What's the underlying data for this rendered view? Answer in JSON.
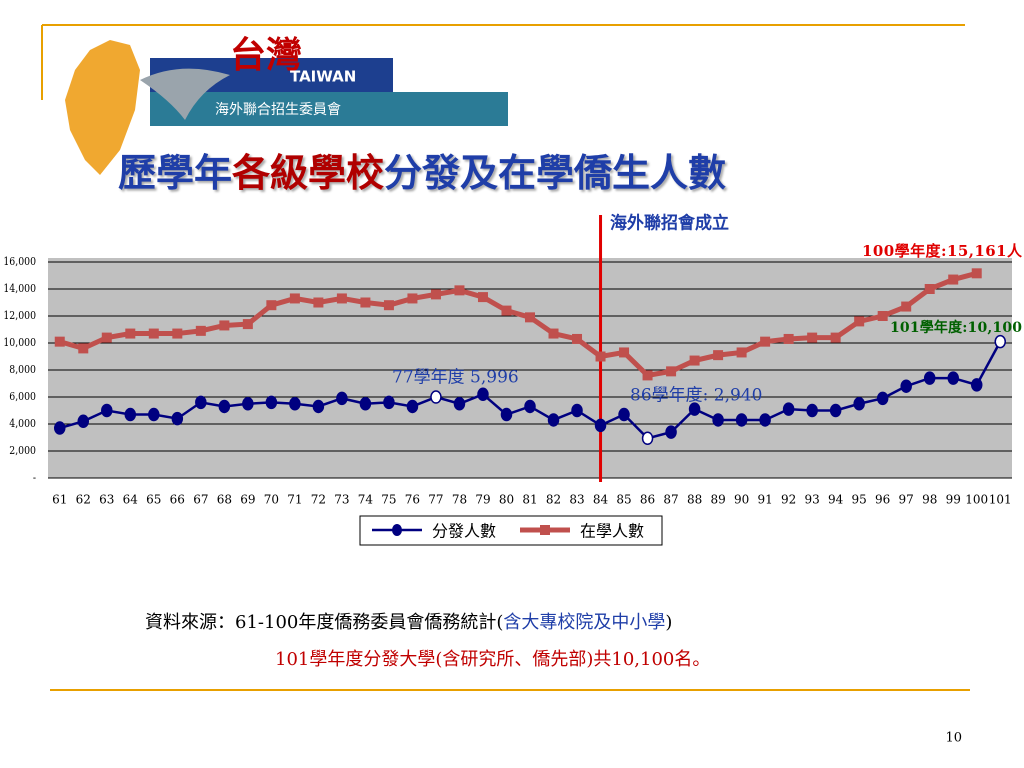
{
  "header": {
    "logo_cn": "台灣",
    "logo_en": "TAIWAN",
    "org": "海外聯合招生委員會"
  },
  "title_parts": [
    "歷學年",
    "各級學校",
    "分發及在學僑生人數"
  ],
  "chart_data": {
    "type": "line",
    "categories": [
      "61",
      "62",
      "63",
      "64",
      "65",
      "66",
      "67",
      "68",
      "69",
      "70",
      "71",
      "72",
      "73",
      "74",
      "75",
      "76",
      "77",
      "78",
      "79",
      "80",
      "81",
      "82",
      "83",
      "84",
      "85",
      "86",
      "87",
      "88",
      "89",
      "90",
      "91",
      "92",
      "93",
      "94",
      "95",
      "96",
      "97",
      "98",
      "99",
      "100",
      "101"
    ],
    "series": [
      {
        "name": "分發人數",
        "color": "#000080",
        "values": [
          3700,
          4200,
          5000,
          4700,
          4700,
          4400,
          5600,
          5300,
          5500,
          5600,
          5500,
          5300,
          5900,
          5500,
          5600,
          5300,
          5996,
          5500,
          6200,
          4700,
          5300,
          4300,
          5000,
          3900,
          4700,
          2940,
          3400,
          5100,
          4300,
          4300,
          4300,
          5100,
          5000,
          5000,
          5500,
          5900,
          6800,
          7400,
          7400,
          6900,
          10100
        ]
      },
      {
        "name": "在學人數",
        "color": "#c0504d",
        "values": [
          10100,
          9600,
          10400,
          10700,
          10700,
          10700,
          10900,
          11300,
          11400,
          12800,
          13300,
          13000,
          13300,
          13000,
          12800,
          13300,
          13600,
          13900,
          13400,
          12400,
          11900,
          10700,
          10300,
          9000,
          9300,
          7600,
          7900,
          8700,
          9100,
          9300,
          10100,
          10300,
          10400,
          10400,
          11600,
          12000,
          12700,
          14000,
          14700,
          15161,
          null
        ]
      }
    ],
    "hollow_markers": [
      16,
      25,
      40
    ],
    "ylim": [
      0,
      16000
    ],
    "yticks": [
      {
        "value": 0,
        "label": "-"
      },
      {
        "value": 2000,
        "label": "2,000"
      },
      {
        "value": 4000,
        "label": "4,000"
      },
      {
        "value": 6000,
        "label": "6,000"
      },
      {
        "value": 8000,
        "label": "8,000"
      },
      {
        "value": 10000,
        "label": "10,000"
      },
      {
        "value": 12000,
        "label": "12,000"
      },
      {
        "value": 14000,
        "label": "14,000"
      },
      {
        "value": 16000,
        "label": "16,000"
      }
    ],
    "grid": true,
    "annotations": [
      "海外聯招會成立",
      "100學年度:15,161人",
      "101學年度:10,100",
      "77學年度 5,996",
      "86學年度: 2,940"
    ]
  },
  "source": {
    "line1_parts": [
      "資料來源：61-100年度僑務委員會僑務統計(",
      "含大專校院及中小學",
      ")"
    ],
    "line2": "101學年度分發大學(含研究所、僑先部)共10,100名。"
  },
  "page_number": "10"
}
